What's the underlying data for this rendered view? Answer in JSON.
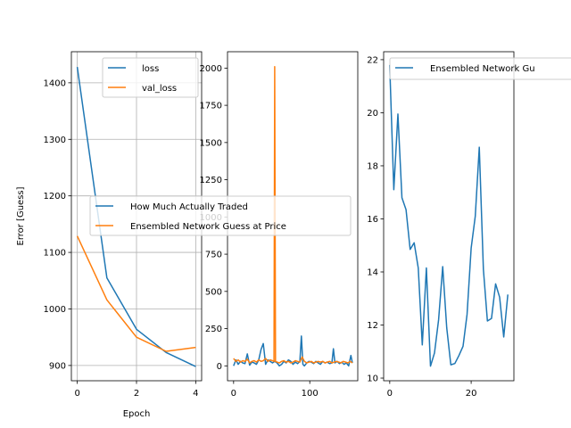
{
  "chart_data": [
    {
      "type": "line",
      "xlabel": "Epoch",
      "ylabel": "Error [Guess]",
      "xlim": [
        -0.2,
        4.2
      ],
      "ylim": [
        873,
        1455
      ],
      "xticks": [
        0,
        2,
        4
      ],
      "yticks": [
        900,
        1000,
        1100,
        1200,
        1300,
        1400
      ],
      "grid": true,
      "legend_position": "upper-right",
      "series": [
        {
          "name": "loss",
          "color": "#1f77b4",
          "x": [
            0,
            1,
            2,
            3,
            4
          ],
          "y": [
            1428,
            1055,
            964,
            923,
            898
          ]
        },
        {
          "name": "val_loss",
          "color": "#ff7f0e",
          "x": [
            0,
            1,
            2,
            3,
            4
          ],
          "y": [
            1129,
            1016,
            950,
            925,
            932
          ]
        }
      ]
    },
    {
      "type": "line",
      "xlim": [
        -8,
        163
      ],
      "ylim": [
        -100,
        2110
      ],
      "xticks": [
        0,
        100
      ],
      "yticks": [
        0,
        250,
        500,
        750,
        1000,
        1250,
        1500,
        1750,
        2000
      ],
      "grid": false,
      "legend_position": "center-left",
      "series": [
        {
          "name": "How Much Actually Traded",
          "color": "#1f77b4",
          "x": [
            0,
            3,
            6,
            9,
            12,
            15,
            18,
            21,
            24,
            27,
            30,
            33,
            36,
            39,
            42,
            45,
            48,
            51,
            54,
            57,
            60,
            63,
            66,
            69,
            72,
            75,
            78,
            81,
            84,
            87,
            89,
            91,
            93,
            96,
            99,
            102,
            105,
            108,
            111,
            114,
            117,
            120,
            123,
            126,
            129,
            131,
            133,
            136,
            139,
            142,
            145,
            148,
            151,
            154,
            156
          ],
          "y": [
            0,
            40,
            10,
            30,
            20,
            15,
            80,
            5,
            25,
            20,
            10,
            40,
            110,
            150,
            10,
            40,
            30,
            20,
            30,
            20,
            0,
            10,
            30,
            20,
            40,
            30,
            10,
            25,
            15,
            30,
            200,
            10,
            0,
            20,
            30,
            25,
            15,
            30,
            20,
            10,
            30,
            20,
            25,
            15,
            20,
            115,
            20,
            30,
            15,
            25,
            10,
            20,
            0,
            70,
            20
          ]
        },
        {
          "name": "Ensembled Network Guess at Price",
          "color": "#ff7f0e",
          "x": [
            0,
            3,
            6,
            9,
            12,
            15,
            18,
            21,
            24,
            27,
            30,
            33,
            36,
            39,
            42,
            45,
            48,
            51,
            53,
            54,
            55,
            57,
            60,
            63,
            66,
            69,
            72,
            75,
            78,
            81,
            84,
            87,
            90,
            93,
            96,
            99,
            102,
            105,
            108,
            111,
            114,
            117,
            120,
            123,
            126,
            129,
            132,
            135,
            138,
            141,
            144,
            147,
            150,
            153,
            156
          ],
          "y": [
            50,
            30,
            40,
            25,
            35,
            30,
            45,
            20,
            30,
            35,
            25,
            40,
            30,
            35,
            50,
            30,
            40,
            35,
            30,
            2010,
            30,
            25,
            20,
            30,
            35,
            25,
            30,
            20,
            25,
            35,
            30,
            25,
            60,
            30,
            20,
            25,
            30,
            20,
            25,
            30,
            25,
            30,
            20,
            25,
            30,
            20,
            25,
            30,
            25,
            20,
            30,
            25,
            20,
            30,
            20
          ]
        }
      ]
    },
    {
      "type": "line",
      "xlim": [
        -1.5,
        30.5
      ],
      "ylim": [
        9.9,
        22.3
      ],
      "xticks": [
        0,
        20
      ],
      "yticks": [
        10,
        12,
        14,
        16,
        18,
        20,
        22
      ],
      "grid": false,
      "legend_position": "upper-right",
      "series": [
        {
          "name": "Ensembled Network Gu",
          "color": "#1f77b4",
          "x": [
            0,
            1,
            2,
            3,
            4,
            5,
            6,
            7,
            8,
            9,
            10,
            11,
            12,
            13,
            14,
            15,
            16,
            17,
            18,
            19,
            20,
            21,
            22,
            23,
            24,
            25,
            26,
            27,
            28,
            29
          ],
          "y": [
            21.8,
            17.1,
            19.95,
            16.8,
            16.35,
            14.85,
            15.1,
            14.15,
            11.25,
            14.15,
            10.45,
            10.95,
            12.2,
            14.2,
            11.9,
            10.5,
            10.55,
            10.85,
            11.2,
            12.4,
            14.9,
            16.1,
            18.7,
            14.1,
            12.15,
            12.25,
            13.55,
            13.05,
            11.55,
            13.15
          ]
        }
      ]
    }
  ]
}
